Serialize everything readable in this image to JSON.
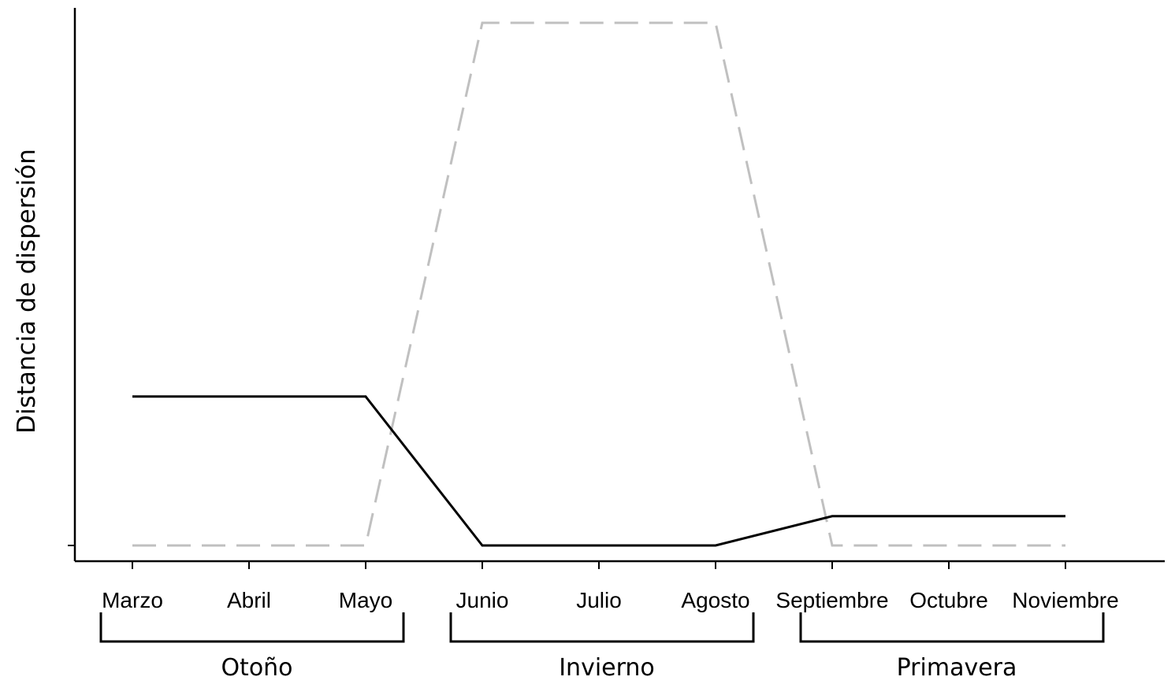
{
  "chart_data": {
    "type": "line",
    "ylabel": "Distancia de dispersión",
    "xlabel": "",
    "categories": [
      "Marzo",
      "Abril",
      "Mayo",
      "Junio",
      "Julio",
      "Agosto",
      "Septiembre",
      "Octubre",
      "Noviembre"
    ],
    "ylim": [
      0,
      1
    ],
    "series": [
      {
        "color": "#000000",
        "style": "solid",
        "values": [
          0.285,
          0.285,
          0.285,
          0.0,
          0.0,
          0.0,
          0.056,
          0.056,
          0.056
        ]
      },
      {
        "color": "#c0c0c0",
        "style": "dashed",
        "values": [
          0.0,
          0.0,
          0.0,
          1.0,
          1.0,
          1.0,
          0.0,
          0.0,
          0.0
        ]
      }
    ],
    "groups": [
      {
        "label": "Otoño",
        "from": "Marzo",
        "to": "Mayo"
      },
      {
        "label": "Invierno",
        "from": "Junio",
        "to": "Agosto"
      },
      {
        "label": "Primavera",
        "from": "Septiembre",
        "to": "Noviembre"
      }
    ],
    "grid": false,
    "legend": "none"
  }
}
